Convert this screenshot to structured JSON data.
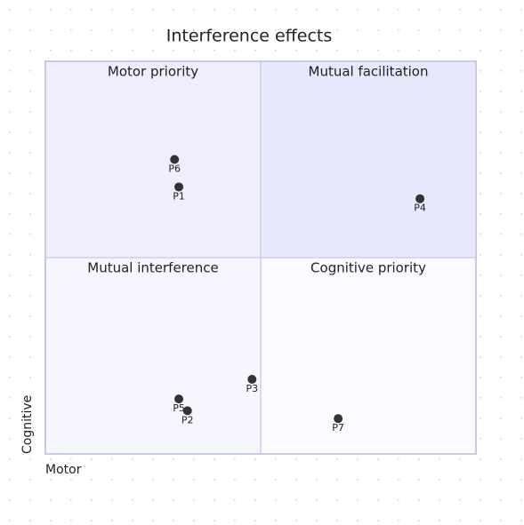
{
  "chart_data": {
    "type": "scatter",
    "title": "Interference effects",
    "x_label": "Motor",
    "y_label": "Cognitive",
    "quadrants": [
      "Motor priority",
      "Mutual facilitation",
      "Mutual interference",
      "Cognitive priority"
    ],
    "point_labels": [
      "P6",
      "P1",
      "P4",
      "P3",
      "P5",
      "P2",
      "P7"
    ],
    "x": [
      0.3,
      0.31,
      0.87,
      0.48,
      0.31,
      0.33,
      0.68
    ],
    "values": [
      0.75,
      0.68,
      0.65,
      0.19,
      0.14,
      0.11,
      0.09
    ],
    "color": "#333333",
    "xlim": [
      0,
      1
    ],
    "ylim": [
      0,
      1
    ]
  }
}
